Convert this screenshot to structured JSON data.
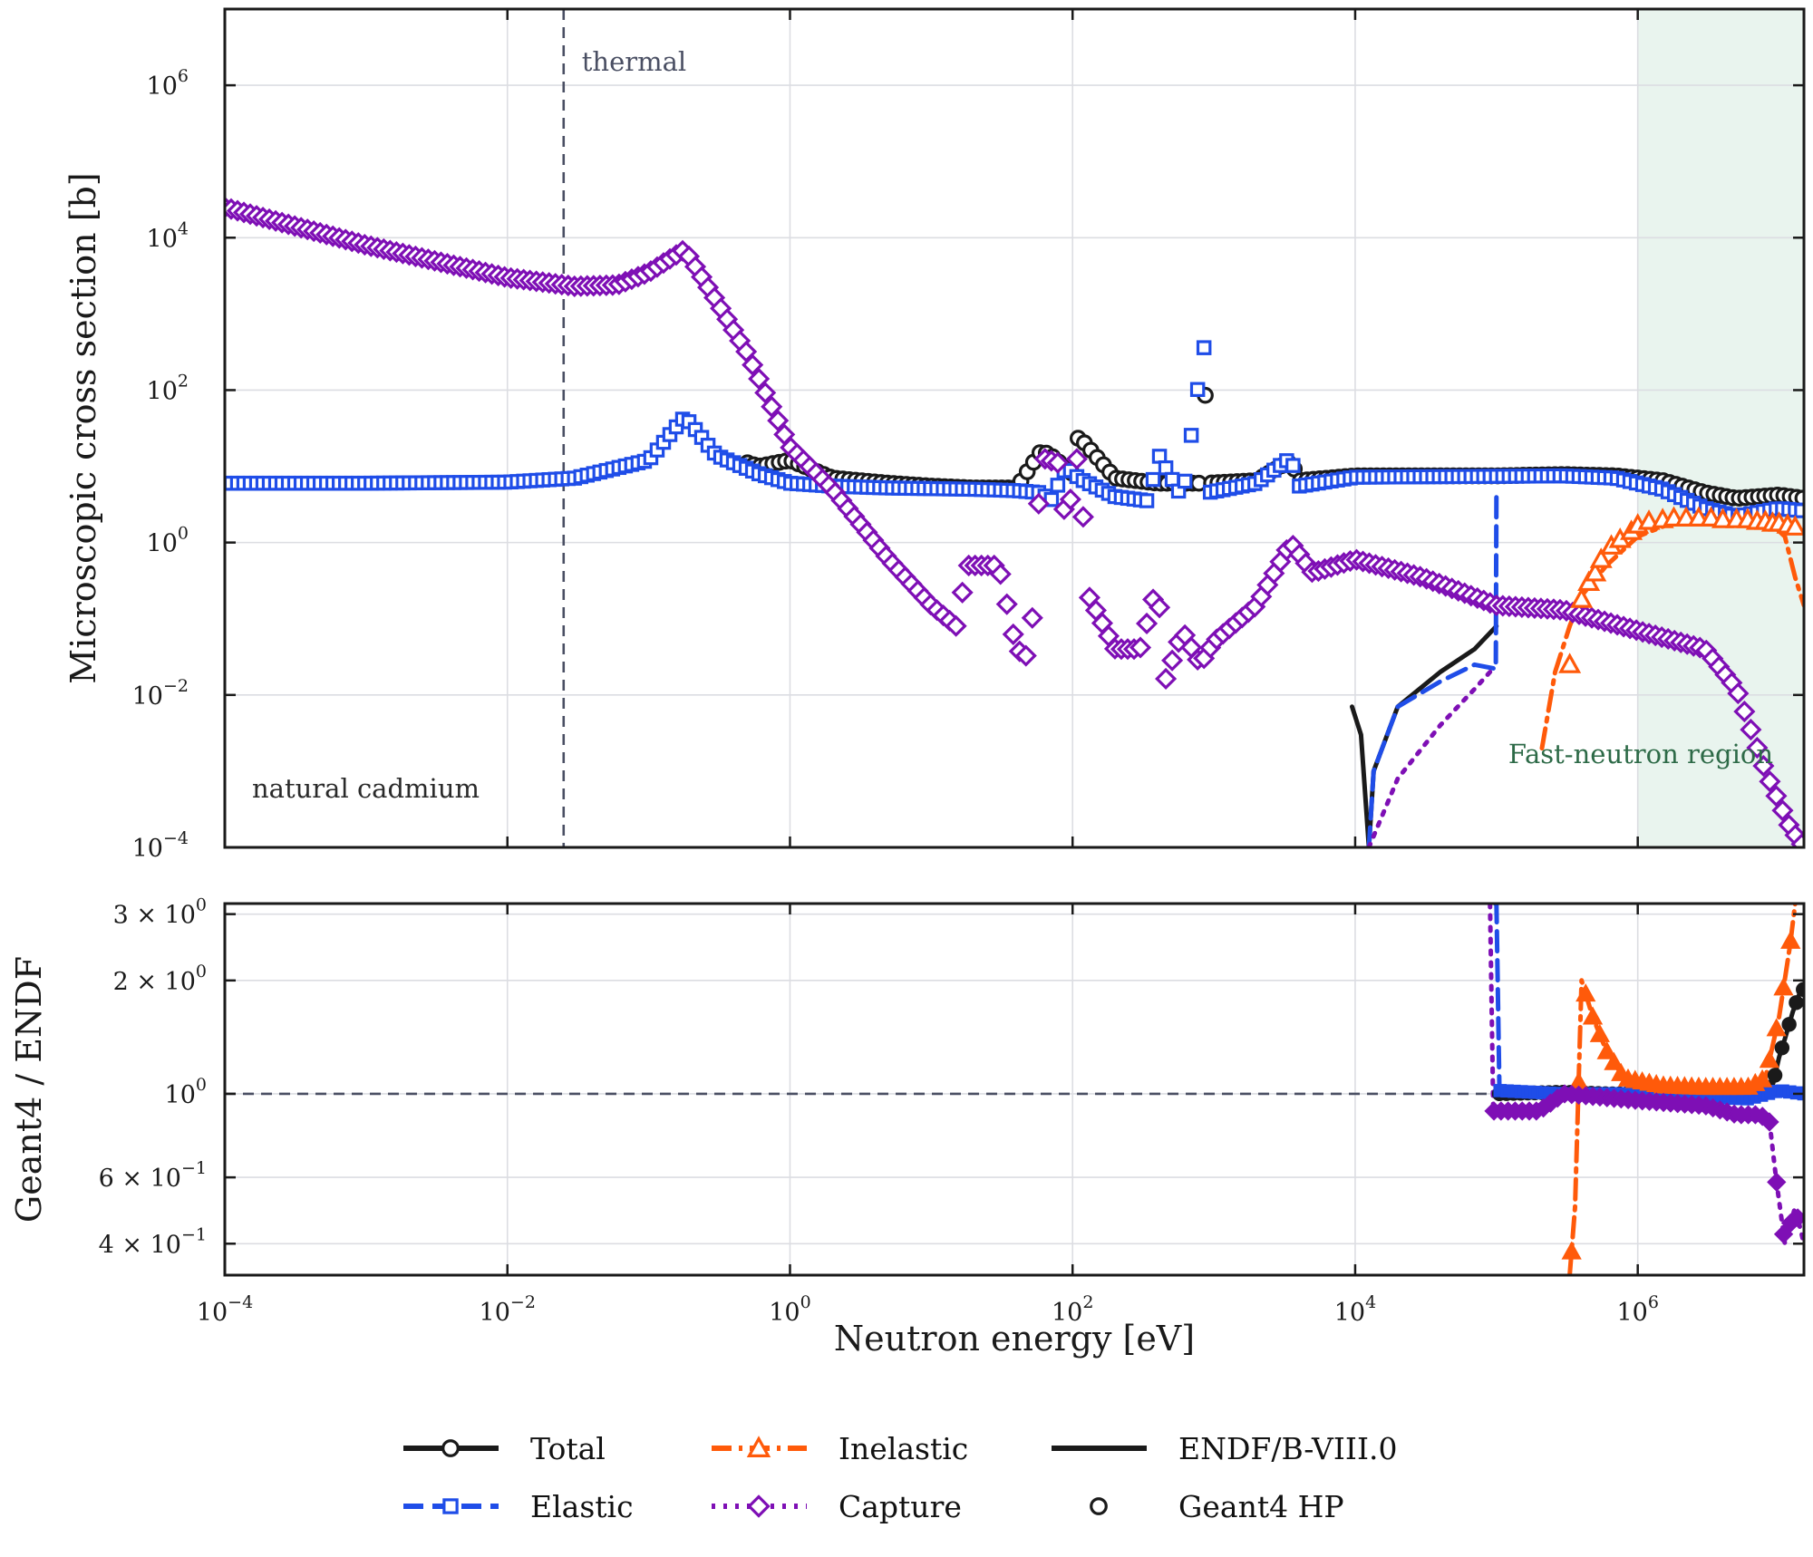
{
  "chart_data": {
    "type": "line",
    "x_scale": "log",
    "y_scale": "log",
    "xlabel": "Neutron energy [eV]",
    "xlim": [
      0.0001,
      15000000
    ],
    "x_ticks": [
      {
        "value": 0.0001,
        "base": "10",
        "exp": "−4"
      },
      {
        "value": 0.01,
        "base": "10",
        "exp": "−2"
      },
      {
        "value": 1,
        "base": "10",
        "exp": "0"
      },
      {
        "value": 100,
        "base": "10",
        "exp": "2"
      },
      {
        "value": 10000,
        "base": "10",
        "exp": "4"
      },
      {
        "value": 1000000,
        "base": "10",
        "exp": "6"
      }
    ],
    "grid": true,
    "styles": {
      "total": {
        "color": "#1a1a1a",
        "marker": "circle",
        "dash": ""
      },
      "elastic": {
        "color": "#1f4de8",
        "marker": "square",
        "dash": "22,10"
      },
      "inelastic": {
        "color": "#ff5a0a",
        "marker": "triangle",
        "dash": "22,8,4,8"
      },
      "capture": {
        "color": "#7e0fb5",
        "marker": "diamond",
        "dash": "4,9"
      }
    },
    "top_panel": {
      "ylabel": "Microscopic cross section [b]",
      "ylim": [
        0.0001,
        10000000
      ],
      "y_ticks": [
        {
          "value": 0.0001,
          "base": "10",
          "exp": "−4"
        },
        {
          "value": 0.01,
          "base": "10",
          "exp": "−2"
        },
        {
          "value": 1,
          "base": "10",
          "exp": "0"
        },
        {
          "value": 100,
          "base": "10",
          "exp": "2"
        },
        {
          "value": 10000,
          "base": "10",
          "exp": "4"
        },
        {
          "value": 1000000,
          "base": "10",
          "exp": "6"
        }
      ],
      "reference_line": {
        "x": 0.025,
        "label": "thermal"
      },
      "shaded_region": {
        "x_from": 1000000,
        "x_to": 15000000,
        "label": "Fast-neutron region"
      },
      "annotation": "natural cadmium",
      "series": {
        "total": [
          [
            0.0001,
            6
          ],
          [
            0.001,
            6
          ],
          [
            0.01,
            6.2
          ],
          [
            0.03,
            7
          ],
          [
            0.1,
            12
          ],
          [
            0.18,
            48
          ],
          [
            0.3,
            15
          ],
          [
            0.6,
            10
          ],
          [
            1,
            12
          ],
          [
            2,
            7
          ],
          [
            5,
            6
          ],
          [
            10,
            5.5
          ],
          [
            20,
            5.2
          ],
          [
            40,
            5.2
          ],
          [
            60,
            16
          ],
          [
            70,
            14
          ],
          [
            100,
            8
          ],
          [
            110,
            25
          ],
          [
            200,
            7
          ],
          [
            400,
            6
          ],
          [
            800,
            6
          ],
          [
            850,
            450
          ],
          [
            900,
            6
          ],
          [
            2000,
            6.5
          ],
          [
            3500,
            12
          ],
          [
            4000,
            6.5
          ],
          [
            10000,
            7.5
          ],
          [
            30000,
            7.5
          ],
          [
            100000,
            7.5
          ],
          [
            300000,
            7.8
          ],
          [
            700000,
            7.5
          ],
          [
            1500000,
            6.5
          ],
          [
            3000000,
            4.5
          ],
          [
            5000000,
            3.8
          ],
          [
            10000000,
            4.2
          ],
          [
            15000000,
            3.8
          ]
        ],
        "elastic": [
          [
            0.0001,
            6
          ],
          [
            0.001,
            6
          ],
          [
            0.01,
            6.2
          ],
          [
            0.03,
            7
          ],
          [
            0.1,
            12
          ],
          [
            0.18,
            45
          ],
          [
            0.3,
            14
          ],
          [
            0.6,
            8
          ],
          [
            1,
            6
          ],
          [
            2,
            5.5
          ],
          [
            5,
            5.2
          ],
          [
            10,
            5.1
          ],
          [
            20,
            5
          ],
          [
            40,
            4.8
          ],
          [
            60,
            4.5
          ],
          [
            70,
            3.5
          ],
          [
            90,
            10
          ],
          [
            110,
            7
          ],
          [
            200,
            4
          ],
          [
            350,
            3.5
          ],
          [
            400,
            15
          ],
          [
            600,
            3.8
          ],
          [
            850,
            400
          ],
          [
            900,
            4.5
          ],
          [
            2000,
            6
          ],
          [
            3500,
            13
          ],
          [
            4000,
            5.5
          ],
          [
            10000,
            7.2
          ],
          [
            30000,
            7.3
          ],
          [
            100000,
            7.4
          ],
          [
            300000,
            7.5
          ],
          [
            700000,
            7
          ],
          [
            1500000,
            5
          ],
          [
            3000000,
            2.8
          ],
          [
            5000000,
            2.2
          ],
          [
            10000000,
            2.8
          ],
          [
            15000000,
            2.6
          ]
        ],
        "capture": [
          [
            0.0001,
            25000
          ],
          [
            0.001,
            8000
          ],
          [
            0.01,
            3000
          ],
          [
            0.03,
            2300
          ],
          [
            0.06,
            2400
          ],
          [
            0.1,
            3500
          ],
          [
            0.18,
            7000
          ],
          [
            0.3,
            1500
          ],
          [
            0.5,
            300
          ],
          [
            1,
            18
          ],
          [
            2,
            5
          ],
          [
            5,
            0.6
          ],
          [
            10,
            0.15
          ],
          [
            15,
            0.08
          ],
          [
            18,
            0.5
          ],
          [
            30,
            0.5
          ],
          [
            40,
            0.04
          ],
          [
            50,
            0.03
          ],
          [
            60,
            13
          ],
          [
            80,
            11
          ],
          [
            90,
            1.6
          ],
          [
            110,
            17
          ],
          [
            130,
            0.2
          ],
          [
            200,
            0.04
          ],
          [
            300,
            0.04
          ],
          [
            400,
            0.3
          ],
          [
            450,
            0.015
          ],
          [
            600,
            0.07
          ],
          [
            800,
            0.025
          ],
          [
            1000,
            0.05
          ],
          [
            2000,
            0.15
          ],
          [
            3500,
            1
          ],
          [
            5000,
            0.4
          ],
          [
            10000,
            0.6
          ],
          [
            30000,
            0.35
          ],
          [
            100000,
            0.15
          ],
          [
            300000,
            0.13
          ],
          [
            1000000,
            0.07
          ],
          [
            3000000,
            0.04
          ],
          [
            5000000,
            0.012
          ],
          [
            8000000,
            0.001
          ],
          [
            12000000,
            0.00018
          ],
          [
            15000000,
            0.0001
          ]
        ],
        "endf_total_line": [
          [
            9500,
            0.007
          ],
          [
            11000,
            0.003
          ],
          [
            12500,
            0.0001
          ],
          [
            13500,
            0.001
          ],
          [
            20000,
            0.007
          ],
          [
            40000,
            0.02
          ],
          [
            70000,
            0.04
          ],
          [
            100000,
            0.08
          ]
        ],
        "endf_elastic_line": [
          [
            12500,
            0.0001
          ],
          [
            13500,
            0.001
          ],
          [
            20000,
            0.007
          ],
          [
            40000,
            0.015
          ],
          [
            70000,
            0.025
          ],
          [
            99000,
            0.022
          ],
          [
            100000,
            5
          ]
        ],
        "endf_capture_line": [
          [
            12500,
            0.0001
          ],
          [
            20000,
            0.0008
          ],
          [
            40000,
            0.004
          ],
          [
            70000,
            0.012
          ],
          [
            90000,
            0.02
          ]
        ],
        "inelastic_line": [
          [
            210000,
            0.002
          ],
          [
            260000,
            0.02
          ],
          [
            330000,
            0.08
          ],
          [
            400000,
            0.2
          ],
          [
            600000,
            0.5
          ],
          [
            1000000,
            1.2
          ],
          [
            2000000,
            2
          ],
          [
            5000000,
            1.9
          ],
          [
            9000000,
            1.7
          ],
          [
            11000000,
            1.2
          ],
          [
            13000000,
            0.35
          ],
          [
            15000000,
            0.15
          ]
        ],
        "inelastic_markers": [
          [
            330000,
            0.025
          ],
          [
            400000,
            0.18
          ],
          [
            450000,
            0.3
          ],
          [
            500000,
            0.4
          ],
          [
            550000,
            0.6
          ],
          [
            650000,
            0.9
          ],
          [
            750000,
            1.1
          ],
          [
            900000,
            1.4
          ],
          [
            1000000,
            1.7
          ],
          [
            1200000,
            1.9
          ],
          [
            1500000,
            2
          ],
          [
            1800000,
            2.1
          ],
          [
            2200000,
            2.1
          ],
          [
            2700000,
            2.1
          ],
          [
            3300000,
            2.1
          ],
          [
            4000000,
            2
          ],
          [
            5000000,
            2
          ],
          [
            6000000,
            2
          ],
          [
            7000000,
            1.9
          ],
          [
            8000000,
            1.9
          ],
          [
            9000000,
            1.8
          ],
          [
            10000000,
            1.8
          ],
          [
            11500000,
            1.7
          ],
          [
            13000000,
            1.6
          ]
        ]
      }
    },
    "bottom_panel": {
      "ylabel": "Geant4 / ENDF",
      "ylim": [
        0.33,
        3.2
      ],
      "y_ticks": [
        {
          "value": 0.4,
          "label": "4 × 10",
          "exp": "−1"
        },
        {
          "value": 0.6,
          "label": "6 × 10",
          "exp": "−1"
        },
        {
          "value": 1,
          "label": "10",
          "exp": "0"
        },
        {
          "value": 2,
          "label": "2 × 10",
          "exp": "0"
        },
        {
          "value": 3,
          "label": "3 × 10",
          "exp": "0"
        }
      ],
      "reference_line": {
        "y": 1
      },
      "series": {
        "total": [
          [
            100000,
            1.0
          ],
          [
            300000,
            1.01
          ],
          [
            600000,
            1.0
          ],
          [
            1000000,
            1.0
          ],
          [
            3000000,
            1.0
          ],
          [
            6000000,
            1.0
          ],
          [
            9000000,
            1.05
          ],
          [
            10000000,
            1.25
          ],
          [
            11000000,
            1.4
          ],
          [
            12500000,
            1.65
          ],
          [
            14000000,
            1.85
          ],
          [
            15000000,
            1.9
          ]
        ],
        "elastic": [
          [
            98000,
            3.2
          ],
          [
            100000,
            3.2
          ],
          [
            105000,
            1.02
          ],
          [
            300000,
            1.0
          ],
          [
            1000000,
            1.0
          ],
          [
            3000000,
            0.98
          ],
          [
            6000000,
            0.97
          ],
          [
            10000000,
            1.02
          ],
          [
            15000000,
            1.0
          ]
        ],
        "inelastic": [
          [
            330000,
            0.33
          ],
          [
            360000,
            0.5
          ],
          [
            400000,
            2.0
          ],
          [
            480000,
            1.6
          ],
          [
            600000,
            1.3
          ],
          [
            800000,
            1.1
          ],
          [
            1500000,
            1.05
          ],
          [
            3000000,
            1.04
          ],
          [
            6000000,
            1.04
          ],
          [
            8000000,
            1.1
          ],
          [
            10000000,
            1.6
          ],
          [
            12000000,
            2.5
          ],
          [
            13000000,
            3.2
          ]
        ],
        "capture": [
          [
            90000,
            3.2
          ],
          [
            95000,
            0.9
          ],
          [
            200000,
            0.9
          ],
          [
            300000,
            1.0
          ],
          [
            1000000,
            0.96
          ],
          [
            3000000,
            0.93
          ],
          [
            5000000,
            0.88
          ],
          [
            7000000,
            0.88
          ],
          [
            8500000,
            0.86
          ],
          [
            9500000,
            0.6
          ],
          [
            11000000,
            0.4
          ],
          [
            12000000,
            0.45
          ],
          [
            13000000,
            0.5
          ],
          [
            15000000,
            0.4
          ]
        ]
      }
    },
    "legend": {
      "placement": "bottom-center",
      "entries": [
        {
          "label": "Total",
          "style": "total"
        },
        {
          "label": "Elastic",
          "style": "elastic"
        },
        {
          "label": "Inelastic",
          "style": "inelastic"
        },
        {
          "label": "Capture",
          "style": "capture"
        },
        {
          "label": "ENDF/B-VIII.0",
          "style": "endf-line"
        },
        {
          "label": "Geant4 HP",
          "style": "geant4-marker"
        }
      ]
    }
  }
}
